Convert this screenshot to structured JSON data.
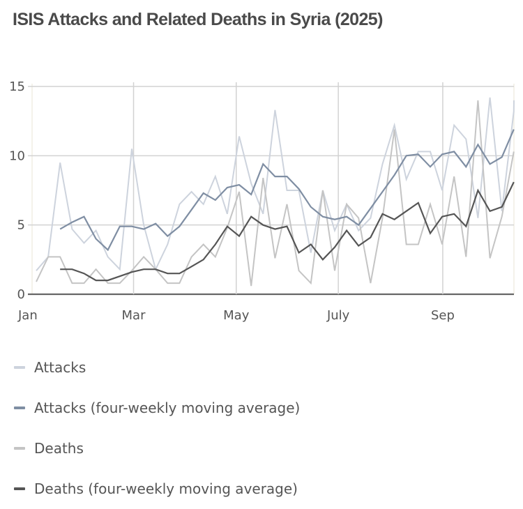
{
  "title": "ISIS Attacks and Related Deaths in Syria (2025)",
  "chart_data": {
    "type": "line",
    "title": "ISIS Attacks and Related Deaths in Syria (2025)",
    "xlabel": "",
    "ylabel": "",
    "ylim": [
      0,
      15
    ],
    "yticks": [
      0,
      5,
      10,
      15
    ],
    "xtick_labels": [
      {
        "label": "Jan",
        "week": -0.35
      },
      {
        "label": "Mar",
        "week": 8.15
      },
      {
        "label": "May",
        "week": 16.75
      },
      {
        "label": "July",
        "week": 25.3
      },
      {
        "label": "Sep",
        "week": 34.05
      }
    ],
    "grid": true,
    "legend_position": "bottom",
    "x_unit": "week index (weekly, 2025)",
    "series": [
      {
        "name": "Attacks",
        "color": "#cdd3dd",
        "values": [
          1.7,
          2.7,
          9.5,
          4.7,
          3.7,
          4.6,
          2.7,
          1.8,
          10.5,
          5.0,
          1.8,
          3.6,
          6.5,
          7.4,
          6.5,
          8.5,
          5.8,
          11.4,
          8.0,
          5.8,
          13.3,
          7.5,
          7.5,
          3.0,
          7.5,
          4.6,
          6.5,
          4.6,
          5.5,
          9.4,
          12.2,
          8.3,
          10.3,
          10.3,
          7.5,
          12.2,
          11.2,
          5.5,
          14.2,
          6.0,
          13.2,
          14.0
        ]
      },
      {
        "name": "Attacks (four-weekly moving average)",
        "color": "#7f8ea3",
        "values": [
          null,
          null,
          4.7,
          5.2,
          5.6,
          4.0,
          3.2,
          4.9,
          4.9,
          4.7,
          5.1,
          4.2,
          4.9,
          6.1,
          7.3,
          6.8,
          7.7,
          7.9,
          7.2,
          9.4,
          8.5,
          8.5,
          7.6,
          6.3,
          5.6,
          5.4,
          5.6,
          5.0,
          6.2,
          7.4,
          8.6,
          10.0,
          10.1,
          9.2,
          10.1,
          10.3,
          9.2,
          10.8,
          9.4,
          9.9,
          11.9,
          null
        ]
      },
      {
        "name": "Deaths",
        "color": "#c4c4c4",
        "values": [
          0.9,
          2.7,
          2.7,
          0.8,
          0.8,
          1.8,
          0.8,
          0.8,
          1.7,
          2.7,
          1.8,
          0.8,
          0.8,
          2.7,
          3.6,
          2.7,
          4.8,
          7.4,
          0.6,
          8.4,
          2.6,
          6.5,
          1.7,
          0.8,
          7.5,
          1.7,
          6.5,
          5.5,
          0.8,
          5.5,
          11.9,
          3.6,
          3.6,
          6.5,
          3.6,
          8.5,
          2.7,
          14.0,
          2.6,
          5.6,
          10.3,
          null
        ]
      },
      {
        "name": "Deaths (four-weekly moving average)",
        "color": "#555555",
        "values": [
          null,
          null,
          1.8,
          1.8,
          1.5,
          1.0,
          1.0,
          1.3,
          1.6,
          1.8,
          1.8,
          1.5,
          1.5,
          2.0,
          2.5,
          3.6,
          4.9,
          4.2,
          5.6,
          5.0,
          4.7,
          4.9,
          3.0,
          3.6,
          2.5,
          3.4,
          4.6,
          3.5,
          4.1,
          5.8,
          5.4,
          6.0,
          6.6,
          4.4,
          5.6,
          5.8,
          4.9,
          7.5,
          6.0,
          6.3,
          8.1,
          null
        ]
      }
    ]
  }
}
